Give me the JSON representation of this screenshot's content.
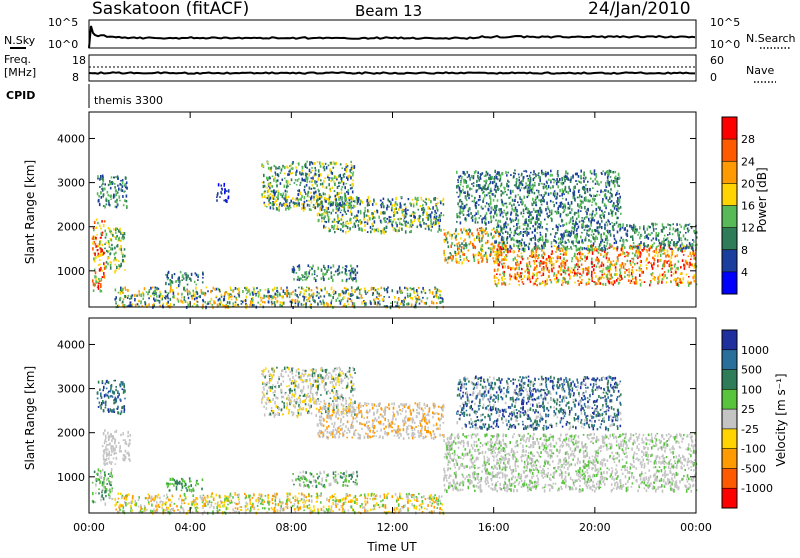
{
  "header": {
    "station": "Saskatoon (fitACF)",
    "beam": "Beam 13",
    "date": "24/Jan/2010"
  },
  "noise_panel": {
    "left_label": "N.Sky",
    "right_label": "N.Search",
    "ticks_left": [
      "10^5",
      "10^0"
    ],
    "ticks_right": [
      "10^5",
      "10^0"
    ]
  },
  "freq_panel": {
    "left_label_1": "Freq.",
    "left_label_2": "[MHz]",
    "right_label": "Nave",
    "ticks_left": [
      "18",
      "8"
    ],
    "ticks_right": [
      "60",
      "0"
    ]
  },
  "cpid": {
    "label": "CPID",
    "program": "themis 3300"
  },
  "axes": {
    "ylabel": "Slant Range [km]",
    "xlabel": "Time UT",
    "y_ticks": [
      "4000",
      "3000",
      "2000",
      "1000"
    ],
    "x_ticks": [
      "00:00",
      "04:00",
      "08:00",
      "12:00",
      "16:00",
      "20:00",
      "00:00"
    ]
  },
  "colorbars": {
    "power": {
      "label": "Power [dB]",
      "ticks": [
        "28",
        "24",
        "20",
        "16",
        "12",
        "8",
        "4"
      ],
      "colors": [
        "#ff0000",
        "#ff5a00",
        "#ff9a00",
        "#ffd400",
        "#57b957",
        "#2e7d58",
        "#1a3e9e",
        "#0000ff"
      ]
    },
    "velocity": {
      "label": "Velocity [m s⁻¹]",
      "ticks": [
        "1000",
        "500",
        "100",
        "25",
        "-25",
        "-100",
        "-500",
        "-1000"
      ],
      "colors": [
        "#1f2f9e",
        "#2a6e9c",
        "#2e7d58",
        "#57c43c",
        "#c4c4c4",
        "#ffd400",
        "#ff9a00",
        "#ff5a00",
        "#ff0000"
      ]
    }
  },
  "chart_data": {
    "type": "heatmap",
    "x_range_hours": [
      0,
      24
    ],
    "y_range_km": [
      180,
      4600
    ],
    "power_panel": {
      "regions": [
        {
          "t0": 0.1,
          "t1": 0.6,
          "r0": 550,
          "r1": 2200,
          "c": [
            "#ff0000",
            "#ff5a00",
            "#ffd400",
            "#57b957"
          ]
        },
        {
          "t0": 0.6,
          "t1": 1.4,
          "r0": 1000,
          "r1": 2000,
          "c": [
            "#57b957",
            "#2e7d58",
            "#ffd400"
          ]
        },
        {
          "t0": 0.3,
          "t1": 1.5,
          "r0": 2450,
          "r1": 3200,
          "c": [
            "#1a3e9e",
            "#2e7d58",
            "#57b957"
          ]
        },
        {
          "t0": 5.0,
          "t1": 5.5,
          "r0": 2600,
          "r1": 3000,
          "c": [
            "#1a3e9e",
            "#0000ff"
          ]
        },
        {
          "t0": 6.8,
          "t1": 10.5,
          "r0": 2400,
          "r1": 3500,
          "c": [
            "#1a3e9e",
            "#2e7d58",
            "#57b957",
            "#ffd400"
          ]
        },
        {
          "t0": 9.0,
          "t1": 14.0,
          "r0": 1900,
          "r1": 2700,
          "c": [
            "#2e7d58",
            "#57b957",
            "#1a3e9e",
            "#ffd400"
          ]
        },
        {
          "t0": 3.0,
          "t1": 4.5,
          "r0": 700,
          "r1": 1000,
          "c": [
            "#2e7d58",
            "#57b957",
            "#1a3e9e"
          ]
        },
        {
          "t0": 8.0,
          "t1": 10.6,
          "r0": 800,
          "r1": 1150,
          "c": [
            "#1a3e9e",
            "#2e7d58",
            "#57b957"
          ]
        },
        {
          "t0": 1.0,
          "t1": 14.0,
          "r0": 200,
          "r1": 650,
          "c": [
            "#1a3e9e",
            "#2e7d58",
            "#57b957",
            "#ffd400",
            "#ff9a00"
          ]
        },
        {
          "t0": 14.0,
          "t1": 16.5,
          "r0": 1200,
          "r1": 2000,
          "c": [
            "#ff5a00",
            "#ff9a00",
            "#ffd400",
            "#57b957",
            "#2e7d58"
          ]
        },
        {
          "t0": 16.0,
          "t1": 24.0,
          "r0": 700,
          "r1": 1600,
          "c": [
            "#ff0000",
            "#ff5a00",
            "#ff9a00",
            "#ffd400",
            "#57b957"
          ]
        },
        {
          "t0": 16.0,
          "t1": 24.0,
          "r0": 1500,
          "r1": 2100,
          "c": [
            "#2e7d58",
            "#1a3e9e",
            "#57b957"
          ]
        },
        {
          "t0": 14.5,
          "t1": 21.0,
          "r0": 2100,
          "r1": 3300,
          "c": [
            "#1a3e9e",
            "#2e7d58",
            "#57b957"
          ]
        }
      ]
    },
    "velocity_panel": {
      "regions": [
        {
          "t0": 0.1,
          "t1": 0.9,
          "r0": 400,
          "r1": 1200,
          "c": [
            "#57c43c",
            "#2e7d58",
            "#c4c4c4"
          ]
        },
        {
          "t0": 0.5,
          "t1": 1.6,
          "r0": 1300,
          "r1": 2100,
          "c": [
            "#c4c4c4"
          ]
        },
        {
          "t0": 0.3,
          "t1": 1.4,
          "r0": 2450,
          "r1": 3200,
          "c": [
            "#2a6e9c",
            "#2e7d58",
            "#1f2f9e"
          ]
        },
        {
          "t0": 6.8,
          "t1": 10.5,
          "r0": 2400,
          "r1": 3500,
          "c": [
            "#c4c4c4",
            "#c4c4c4",
            "#2e7d58",
            "#ffd400"
          ]
        },
        {
          "t0": 9.0,
          "t1": 14.0,
          "r0": 1900,
          "r1": 2700,
          "c": [
            "#c4c4c4",
            "#c4c4c4",
            "#ff9a00"
          ]
        },
        {
          "t0": 3.0,
          "t1": 4.5,
          "r0": 700,
          "r1": 1000,
          "c": [
            "#57c43c",
            "#2e7d58"
          ]
        },
        {
          "t0": 8.0,
          "t1": 10.6,
          "r0": 800,
          "r1": 1150,
          "c": [
            "#2e7d58",
            "#57c43c",
            "#c4c4c4"
          ]
        },
        {
          "t0": 1.0,
          "t1": 14.0,
          "r0": 200,
          "r1": 650,
          "c": [
            "#ffd400",
            "#ff9a00",
            "#c4c4c4",
            "#57c43c"
          ]
        },
        {
          "t0": 14.0,
          "t1": 24.0,
          "r0": 700,
          "r1": 2000,
          "c": [
            "#c4c4c4",
            "#c4c4c4",
            "#c4c4c4",
            "#57c43c"
          ]
        },
        {
          "t0": 14.5,
          "t1": 21.0,
          "r0": 2100,
          "r1": 3300,
          "c": [
            "#2e7d58",
            "#2a6e9c",
            "#c4c4c4",
            "#1f2f9e"
          ]
        }
      ]
    }
  }
}
